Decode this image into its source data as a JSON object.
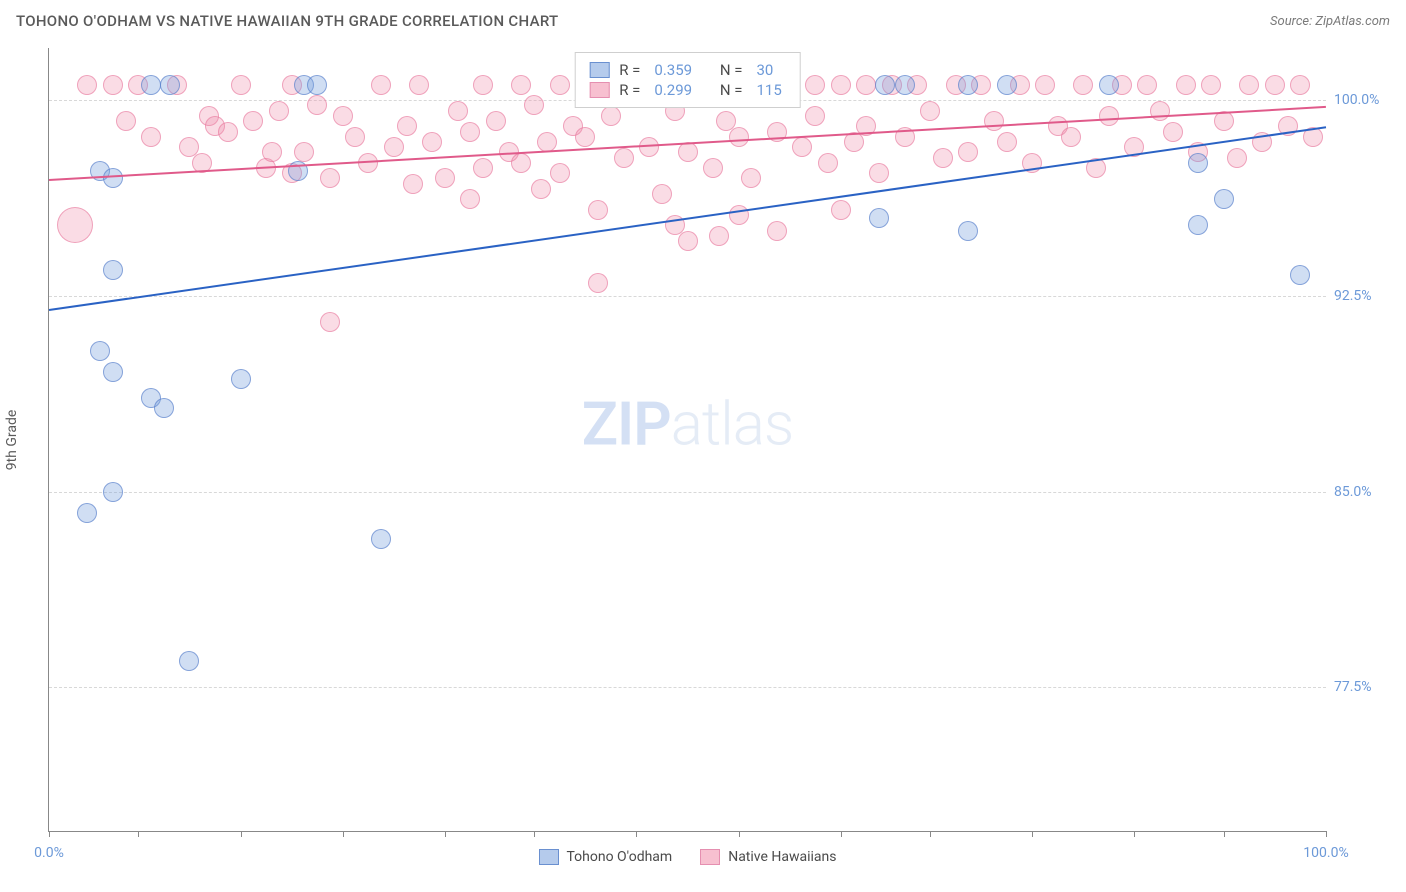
{
  "header": {
    "title": "TOHONO O'ODHAM VS NATIVE HAWAIIAN 9TH GRADE CORRELATION CHART",
    "source": "Source: ZipAtlas.com"
  },
  "watermark": {
    "zip": "ZIP",
    "atlas": "atlas"
  },
  "chart": {
    "type": "scatter",
    "background_color": "#ffffff",
    "grid_color": "#d8d8d8",
    "axis_color": "#888888",
    "label_fontsize": 14,
    "title_fontsize": 15,
    "ylabel": "9th Grade",
    "xlim": [
      0,
      100
    ],
    "ylim": [
      72,
      102
    ],
    "yticks": [
      {
        "v": 77.5,
        "label": "77.5%"
      },
      {
        "v": 85.0,
        "label": "85.0%"
      },
      {
        "v": 92.5,
        "label": "92.5%"
      },
      {
        "v": 100.0,
        "label": "100.0%"
      }
    ],
    "xticks_major": [
      0,
      100
    ],
    "xticks_minor": [
      7,
      15,
      23,
      31,
      38,
      46,
      54,
      62,
      69,
      77,
      85,
      92
    ],
    "xtick_labels": [
      {
        "v": 0,
        "label": "0.0%"
      },
      {
        "v": 100,
        "label": "100.0%"
      }
    ],
    "marker_radius": 10,
    "marker_radius_large": 18,
    "series": [
      {
        "name": "Tohono O'odham",
        "color_fill": "rgba(120,160,220,0.35)",
        "color_stroke": "rgba(80,120,200,0.6)",
        "trend_color": "#2a62c4",
        "trend": {
          "x1": 0,
          "y1": 92.0,
          "x2": 100,
          "y2": 99.0
        },
        "R": "0.359",
        "N": "30",
        "points": [
          {
            "x": 8,
            "y": 100.6
          },
          {
            "x": 9.5,
            "y": 100.6
          },
          {
            "x": 20,
            "y": 100.6
          },
          {
            "x": 21,
            "y": 100.6
          },
          {
            "x": 43,
            "y": 100.6
          },
          {
            "x": 50,
            "y": 100.6
          },
          {
            "x": 65.5,
            "y": 100.6
          },
          {
            "x": 67,
            "y": 100.6
          },
          {
            "x": 72,
            "y": 100.6
          },
          {
            "x": 75,
            "y": 100.6
          },
          {
            "x": 83,
            "y": 100.6
          },
          {
            "x": 4,
            "y": 97.3
          },
          {
            "x": 5,
            "y": 97.0
          },
          {
            "x": 19.5,
            "y": 97.3
          },
          {
            "x": 90,
            "y": 97.6
          },
          {
            "x": 92,
            "y": 96.2
          },
          {
            "x": 65,
            "y": 95.5
          },
          {
            "x": 72,
            "y": 95.0
          },
          {
            "x": 90,
            "y": 95.2
          },
          {
            "x": 5,
            "y": 93.5
          },
          {
            "x": 98,
            "y": 93.3
          },
          {
            "x": 4,
            "y": 90.4
          },
          {
            "x": 5,
            "y": 89.6
          },
          {
            "x": 8,
            "y": 88.6
          },
          {
            "x": 9,
            "y": 88.2
          },
          {
            "x": 15,
            "y": 89.3
          },
          {
            "x": 5,
            "y": 85.0
          },
          {
            "x": 3,
            "y": 84.2
          },
          {
            "x": 26,
            "y": 83.2
          },
          {
            "x": 11,
            "y": 78.5
          }
        ]
      },
      {
        "name": "Native Hawaiians",
        "color_fill": "rgba(240,140,170,0.30)",
        "color_stroke": "rgba(230,110,150,0.55)",
        "trend_color": "#e05a8a",
        "trend": {
          "x1": 0,
          "y1": 97.0,
          "x2": 100,
          "y2": 99.8
        },
        "R": "0.299",
        "N": "115",
        "points": [
          {
            "x": 2,
            "y": 95.2,
            "r": 18
          },
          {
            "x": 3,
            "y": 100.6
          },
          {
            "x": 5,
            "y": 100.6
          },
          {
            "x": 6,
            "y": 99.2
          },
          {
            "x": 7,
            "y": 100.6
          },
          {
            "x": 8,
            "y": 98.6
          },
          {
            "x": 10,
            "y": 100.6
          },
          {
            "x": 11,
            "y": 98.2
          },
          {
            "x": 12,
            "y": 97.6
          },
          {
            "x": 12.5,
            "y": 99.4
          },
          {
            "x": 13,
            "y": 99.0
          },
          {
            "x": 14,
            "y": 98.8
          },
          {
            "x": 15,
            "y": 100.6
          },
          {
            "x": 16,
            "y": 99.2
          },
          {
            "x": 17,
            "y": 97.4
          },
          {
            "x": 17.5,
            "y": 98.0
          },
          {
            "x": 18,
            "y": 99.6
          },
          {
            "x": 19,
            "y": 97.2
          },
          {
            "x": 19,
            "y": 100.6
          },
          {
            "x": 20,
            "y": 98.0
          },
          {
            "x": 21,
            "y": 99.8
          },
          {
            "x": 22,
            "y": 97.0
          },
          {
            "x": 22,
            "y": 91.5
          },
          {
            "x": 23,
            "y": 99.4
          },
          {
            "x": 24,
            "y": 98.6
          },
          {
            "x": 25,
            "y": 97.6
          },
          {
            "x": 26,
            "y": 100.6
          },
          {
            "x": 27,
            "y": 98.2
          },
          {
            "x": 28,
            "y": 99.0
          },
          {
            "x": 28.5,
            "y": 96.8
          },
          {
            "x": 29,
            "y": 100.6
          },
          {
            "x": 30,
            "y": 98.4
          },
          {
            "x": 31,
            "y": 97.0
          },
          {
            "x": 32,
            "y": 99.6
          },
          {
            "x": 33,
            "y": 98.8
          },
          {
            "x": 33,
            "y": 96.2
          },
          {
            "x": 34,
            "y": 100.6
          },
          {
            "x": 34,
            "y": 97.4
          },
          {
            "x": 35,
            "y": 99.2
          },
          {
            "x": 36,
            "y": 98.0
          },
          {
            "x": 37,
            "y": 97.6
          },
          {
            "x": 37,
            "y": 100.6
          },
          {
            "x": 38,
            "y": 99.8
          },
          {
            "x": 38.5,
            "y": 96.6
          },
          {
            "x": 39,
            "y": 98.4
          },
          {
            "x": 40,
            "y": 97.2
          },
          {
            "x": 40,
            "y": 100.6
          },
          {
            "x": 41,
            "y": 99.0
          },
          {
            "x": 42,
            "y": 98.6
          },
          {
            "x": 43,
            "y": 95.8
          },
          {
            "x": 43,
            "y": 93.0
          },
          {
            "x": 44,
            "y": 99.4
          },
          {
            "x": 45,
            "y": 97.8
          },
          {
            "x": 46,
            "y": 100.6
          },
          {
            "x": 47,
            "y": 98.2
          },
          {
            "x": 48,
            "y": 96.4
          },
          {
            "x": 49,
            "y": 99.6
          },
          {
            "x": 49,
            "y": 95.2
          },
          {
            "x": 50,
            "y": 94.6
          },
          {
            "x": 50,
            "y": 98.0
          },
          {
            "x": 51,
            "y": 100.6
          },
          {
            "x": 52,
            "y": 97.4
          },
          {
            "x": 52.5,
            "y": 94.8
          },
          {
            "x": 53,
            "y": 99.2
          },
          {
            "x": 54,
            "y": 98.6
          },
          {
            "x": 54,
            "y": 95.6
          },
          {
            "x": 55,
            "y": 97.0
          },
          {
            "x": 56,
            "y": 100.6
          },
          {
            "x": 57,
            "y": 98.8
          },
          {
            "x": 57,
            "y": 95.0
          },
          {
            "x": 58,
            "y": 100.6
          },
          {
            "x": 59,
            "y": 98.2
          },
          {
            "x": 60,
            "y": 99.4
          },
          {
            "x": 60,
            "y": 100.6
          },
          {
            "x": 61,
            "y": 97.6
          },
          {
            "x": 62,
            "y": 100.6
          },
          {
            "x": 62,
            "y": 95.8
          },
          {
            "x": 63,
            "y": 98.4
          },
          {
            "x": 64,
            "y": 99.0
          },
          {
            "x": 64,
            "y": 100.6
          },
          {
            "x": 65,
            "y": 97.2
          },
          {
            "x": 66,
            "y": 100.6
          },
          {
            "x": 67,
            "y": 98.6
          },
          {
            "x": 68,
            "y": 100.6
          },
          {
            "x": 69,
            "y": 99.6
          },
          {
            "x": 70,
            "y": 97.8
          },
          {
            "x": 71,
            "y": 100.6
          },
          {
            "x": 72,
            "y": 98.0
          },
          {
            "x": 73,
            "y": 100.6
          },
          {
            "x": 74,
            "y": 99.2
          },
          {
            "x": 75,
            "y": 98.4
          },
          {
            "x": 76,
            "y": 100.6
          },
          {
            "x": 77,
            "y": 97.6
          },
          {
            "x": 78,
            "y": 100.6
          },
          {
            "x": 79,
            "y": 99.0
          },
          {
            "x": 80,
            "y": 98.6
          },
          {
            "x": 81,
            "y": 100.6
          },
          {
            "x": 82,
            "y": 97.4
          },
          {
            "x": 83,
            "y": 99.4
          },
          {
            "x": 84,
            "y": 100.6
          },
          {
            "x": 85,
            "y": 98.2
          },
          {
            "x": 86,
            "y": 100.6
          },
          {
            "x": 87,
            "y": 99.6
          },
          {
            "x": 88,
            "y": 98.8
          },
          {
            "x": 89,
            "y": 100.6
          },
          {
            "x": 90,
            "y": 98.0
          },
          {
            "x": 91,
            "y": 100.6
          },
          {
            "x": 92,
            "y": 99.2
          },
          {
            "x": 93,
            "y": 97.8
          },
          {
            "x": 94,
            "y": 100.6
          },
          {
            "x": 95,
            "y": 98.4
          },
          {
            "x": 96,
            "y": 100.6
          },
          {
            "x": 97,
            "y": 99.0
          },
          {
            "x": 98,
            "y": 100.6
          },
          {
            "x": 99,
            "y": 98.6
          }
        ]
      }
    ],
    "legend": {
      "rows": [
        {
          "swatch": "blue",
          "R_label": "R =",
          "N_label": "N ="
        },
        {
          "swatch": "pink",
          "R_label": "R =",
          "N_label": "N ="
        }
      ]
    },
    "bottom_legend": [
      {
        "swatch": "blue",
        "label": "Tohono O'odham"
      },
      {
        "swatch": "pink",
        "label": "Native Hawaiians"
      }
    ]
  }
}
